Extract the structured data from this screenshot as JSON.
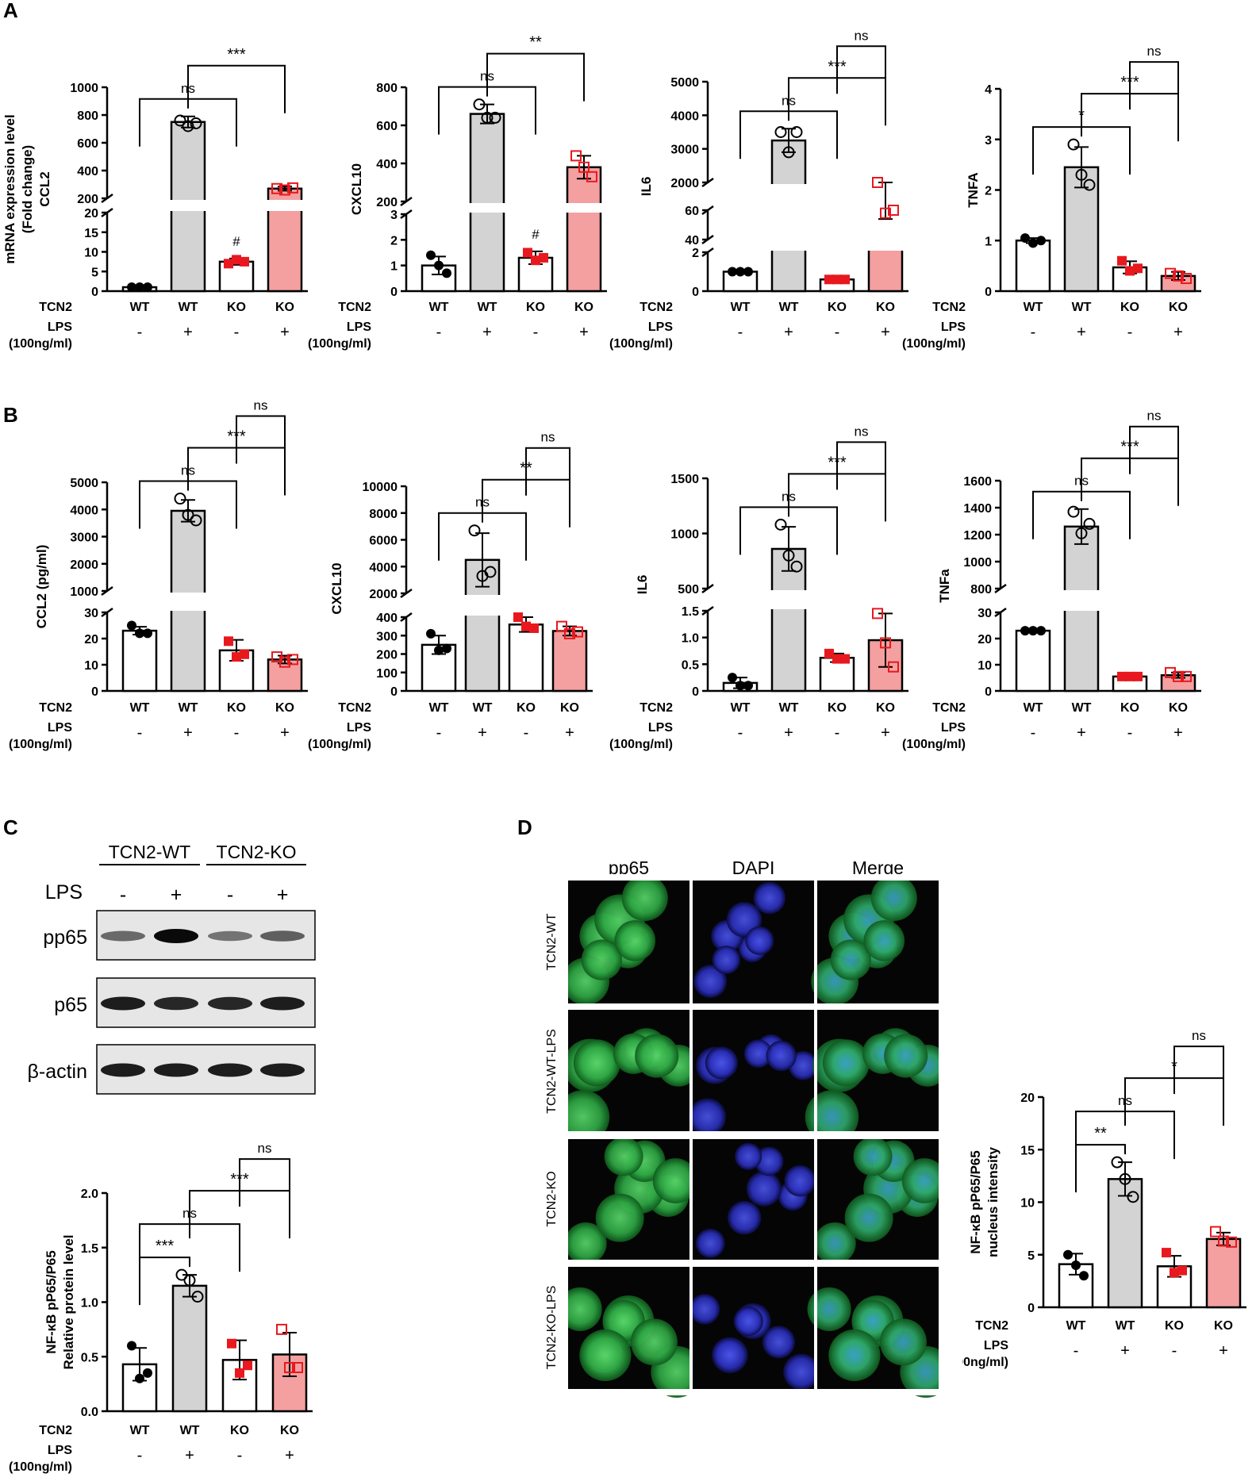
{
  "panels": {
    "A": "A",
    "B": "B",
    "C": "C",
    "D": "D"
  },
  "colors": {
    "wt_fill": "#ffffff",
    "wt_lps_fill": "#d3d3d3",
    "ko_fill": "#ffffff",
    "ko_lps_fill": "#f4a0a0",
    "wt_point": "#000000",
    "ko_point": "#e8181e",
    "axis": "#000000"
  },
  "condition_labels": {
    "row1": "TCN2",
    "row2": "LPS",
    "row3": "(100ng/ml)",
    "tcn2": [
      "WT",
      "WT",
      "KO",
      "KO"
    ],
    "lps": [
      "-",
      "+",
      "-",
      "+"
    ]
  },
  "chart_data": [
    {
      "id": "A1",
      "type": "bar",
      "ylabel_lines": [
        "mRNA expression level",
        "(Fold change)",
        "CCL2"
      ],
      "categories": [
        "WT -",
        "WT +",
        "KO -",
        "KO +"
      ],
      "values": [
        1,
        750,
        7.5,
        270
      ],
      "points": [
        [
          1,
          1,
          1
        ],
        [
          760,
          720,
          740
        ],
        [
          7,
          8,
          7.5
        ],
        [
          270,
          260,
          275
        ]
      ],
      "errors": [
        0.1,
        40,
        0.8,
        15
      ],
      "y_break": {
        "lower": [
          0,
          20
        ],
        "upper": [
          200,
          1000
        ]
      },
      "lower_ticks": [
        "0",
        "5",
        "10",
        "15",
        "20"
      ],
      "upper_ticks": [
        "200",
        "400",
        "600",
        "800",
        "1000"
      ],
      "annotations": [
        {
          "label": "ns",
          "from": 0,
          "to": 2
        },
        {
          "label": "***",
          "from": 1,
          "to": 3
        }
      ],
      "marker_labels": [
        {
          "label": "#",
          "bar": 2
        }
      ]
    },
    {
      "id": "A2",
      "type": "bar",
      "ylabel_lines": [
        "CXCL10"
      ],
      "categories": [
        "WT -",
        "WT +",
        "KO -",
        "KO +"
      ],
      "values": [
        1,
        660,
        1.3,
        380
      ],
      "points": [
        [
          1.4,
          1,
          0.7
        ],
        [
          710,
          640,
          640
        ],
        [
          1.5,
          1.2,
          1.3
        ],
        [
          440,
          380,
          330
        ]
      ],
      "errors": [
        0.35,
        50,
        0.25,
        60
      ],
      "y_break": {
        "lower": [
          0,
          3
        ],
        "upper": [
          200,
          800
        ]
      },
      "lower_ticks": [
        "0",
        "1",
        "2",
        "3"
      ],
      "upper_ticks": [
        "200",
        "400",
        "600",
        "800"
      ],
      "annotations": [
        {
          "label": "ns",
          "from": 0,
          "to": 2
        },
        {
          "label": "**",
          "from": 1,
          "to": 3
        }
      ],
      "marker_labels": [
        {
          "label": "#",
          "bar": 2
        }
      ]
    },
    {
      "id": "A3",
      "type": "bar",
      "ylabel_lines": [
        "IL6"
      ],
      "categories": [
        "WT -",
        "WT +",
        "KO -",
        "KO +"
      ],
      "values": [
        1,
        3250,
        0.6,
        60
      ],
      "points": [
        [
          1,
          1,
          1
        ],
        [
          3500,
          2900,
          3500
        ],
        [
          0.6,
          0.6,
          0.6
        ],
        [
          65,
          58,
          60
        ]
      ],
      "errors": [
        0.1,
        350,
        0.05,
        6
      ],
      "y_break": {
        "lower": [
          0,
          2
        ],
        "middle": [
          40,
          60
        ],
        "upper": [
          2000,
          5000
        ]
      },
      "lower_ticks": [
        "0",
        "2"
      ],
      "middle_ticks": [
        "40",
        "60"
      ],
      "upper_ticks": [
        "2000",
        "3000",
        "4000",
        "5000"
      ],
      "annotations": [
        {
          "label": "ns",
          "from": 0,
          "to": 2
        },
        {
          "label": "***",
          "from": 1,
          "to": 3
        },
        {
          "label": "ns",
          "from": 2,
          "to": 3
        }
      ]
    },
    {
      "id": "A4",
      "type": "bar",
      "ylabel_lines": [
        "TNFA"
      ],
      "categories": [
        "WT -",
        "WT +",
        "KO -",
        "KO +"
      ],
      "values": [
        1,
        2.45,
        0.47,
        0.3
      ],
      "points": [
        [
          1.05,
          0.95,
          1.0
        ],
        [
          2.9,
          2.3,
          2.1
        ],
        [
          0.6,
          0.4,
          0.45
        ],
        [
          0.35,
          0.3,
          0.25
        ]
      ],
      "errors": [
        0.05,
        0.4,
        0.12,
        0.08
      ],
      "ylim": [
        0,
        4
      ],
      "ticks": [
        "0",
        "1",
        "2",
        "3",
        "4"
      ],
      "annotations": [
        {
          "label": "*",
          "from": 0,
          "to": 2
        },
        {
          "label": "***",
          "from": 1,
          "to": 3
        },
        {
          "label": "ns",
          "from": 2,
          "to": 3
        }
      ]
    },
    {
      "id": "B1",
      "type": "bar",
      "ylabel_lines": [
        "CCL2 (pg/ml)"
      ],
      "categories": [
        "WT -",
        "WT +",
        "KO -",
        "KO +"
      ],
      "values": [
        23,
        3950,
        15.5,
        12
      ],
      "points": [
        [
          25,
          22,
          22
        ],
        [
          4400,
          3800,
          3600
        ],
        [
          19,
          13,
          14
        ],
        [
          13,
          11,
          12
        ]
      ],
      "errors": [
        1.5,
        400,
        4,
        1.5
      ],
      "y_break": {
        "lower": [
          0,
          30
        ],
        "upper": [
          1000,
          5000
        ]
      },
      "lower_ticks": [
        "0",
        "10",
        "20",
        "30"
      ],
      "upper_ticks": [
        "1000",
        "2000",
        "3000",
        "4000",
        "5000"
      ],
      "annotations": [
        {
          "label": "ns",
          "from": 0,
          "to": 2
        },
        {
          "label": "***",
          "from": 1,
          "to": 3
        },
        {
          "label": "ns",
          "from": 2,
          "to": 3
        }
      ]
    },
    {
      "id": "B2",
      "type": "bar",
      "ylabel_lines": [
        "CXCL10"
      ],
      "categories": [
        "WT -",
        "WT +",
        "KO -",
        "KO +"
      ],
      "values": [
        250,
        4500,
        360,
        325
      ],
      "points": [
        [
          310,
          220,
          230
        ],
        [
          6700,
          3300,
          3600
        ],
        [
          400,
          350,
          340
        ],
        [
          350,
          310,
          320
        ]
      ],
      "errors": [
        50,
        2000,
        40,
        25
      ],
      "y_break": {
        "lower": [
          0,
          400
        ],
        "upper": [
          2000,
          10000
        ]
      },
      "lower_ticks": [
        "0",
        "100",
        "200",
        "300",
        "400"
      ],
      "upper_ticks": [
        "2000",
        "4000",
        "6000",
        "8000",
        "10000"
      ],
      "annotations": [
        {
          "label": "ns",
          "from": 0,
          "to": 2
        },
        {
          "label": "**",
          "from": 1,
          "to": 3
        },
        {
          "label": "ns",
          "from": 2,
          "to": 3
        }
      ]
    },
    {
      "id": "B3",
      "type": "bar",
      "ylabel_lines": [
        "IL6"
      ],
      "categories": [
        "WT -",
        "WT +",
        "KO -",
        "KO +"
      ],
      "values": [
        0.15,
        860,
        0.62,
        0.95
      ],
      "points": [
        [
          0.25,
          0.1,
          0.1
        ],
        [
          1080,
          800,
          700
        ],
        [
          0.7,
          0.6,
          0.6
        ],
        [
          1.45,
          0.9,
          0.45
        ]
      ],
      "errors": [
        0.1,
        200,
        0.08,
        0.5
      ],
      "y_break": {
        "lower": [
          0,
          1.5
        ],
        "upper": [
          500,
          1500
        ]
      },
      "lower_ticks": [
        "0",
        "0.5",
        "1.0",
        "1.5"
      ],
      "upper_ticks": [
        "500",
        "1000",
        "1500"
      ],
      "annotations": [
        {
          "label": "ns",
          "from": 0,
          "to": 2
        },
        {
          "label": "***",
          "from": 1,
          "to": 3
        },
        {
          "label": "ns",
          "from": 2,
          "to": 3
        }
      ]
    },
    {
      "id": "B4",
      "type": "bar",
      "ylabel_lines": [
        "TNFa"
      ],
      "categories": [
        "WT -",
        "WT +",
        "KO -",
        "KO +"
      ],
      "values": [
        23,
        1260,
        5.5,
        6
      ],
      "points": [
        [
          23,
          23,
          23
        ],
        [
          1370,
          1210,
          1280
        ],
        [
          5.5,
          5.5,
          5.5
        ],
        [
          7,
          5.5,
          5.5
        ]
      ],
      "errors": [
        0.3,
        130,
        0.3,
        1
      ],
      "y_break": {
        "lower": [
          0,
          30
        ],
        "upper": [
          800,
          1600
        ]
      },
      "lower_ticks": [
        "0",
        "10",
        "20",
        "30"
      ],
      "upper_ticks": [
        "800",
        "1000",
        "1200",
        "1400",
        "1600"
      ],
      "annotations": [
        {
          "label": "ns",
          "from": 0,
          "to": 2
        },
        {
          "label": "***",
          "from": 1,
          "to": 3
        },
        {
          "label": "ns",
          "from": 2,
          "to": 3
        }
      ]
    },
    {
      "id": "C",
      "type": "bar",
      "ylabel_lines": [
        "NF-κB pP65/P65",
        "Relative protein level"
      ],
      "categories": [
        "WT -",
        "WT +",
        "KO -",
        "KO +"
      ],
      "values": [
        0.43,
        1.15,
        0.47,
        0.52
      ],
      "points": [
        [
          0.6,
          0.3,
          0.35
        ],
        [
          1.25,
          1.2,
          1.05
        ],
        [
          0.62,
          0.35,
          0.42
        ],
        [
          0.75,
          0.4,
          0.4
        ]
      ],
      "errors": [
        0.15,
        0.1,
        0.18,
        0.2
      ],
      "ylim": [
        0,
        2.0
      ],
      "ticks": [
        "0.0",
        "0.5",
        "1.0",
        "1.5",
        "2.0"
      ],
      "annotations": [
        {
          "label": "***",
          "from": 0,
          "to": 1
        },
        {
          "label": "ns",
          "from": 0,
          "to": 2
        },
        {
          "label": "***",
          "from": 1,
          "to": 3
        },
        {
          "label": "ns",
          "from": 2,
          "to": 3
        }
      ]
    },
    {
      "id": "D",
      "type": "bar",
      "ylabel_lines": [
        "NF-κB pP65/P65",
        "nucleus intensity"
      ],
      "categories": [
        "WT -",
        "WT +",
        "KO -",
        "KO +"
      ],
      "values": [
        4.1,
        12.2,
        3.9,
        6.5
      ],
      "points": [
        [
          5,
          4,
          3
        ],
        [
          13.8,
          12.2,
          10.5
        ],
        [
          5.2,
          3.3,
          3.5
        ],
        [
          7.2,
          6.3,
          6.2
        ]
      ],
      "errors": [
        1,
        1.6,
        1,
        0.6
      ],
      "ylim": [
        0,
        20
      ],
      "ticks": [
        "0",
        "5",
        "10",
        "15",
        "20"
      ],
      "annotations": [
        {
          "label": "**",
          "from": 0,
          "to": 1
        },
        {
          "label": "ns",
          "from": 0,
          "to": 2
        },
        {
          "label": "*",
          "from": 1,
          "to": 3
        },
        {
          "label": "ns",
          "from": 2,
          "to": 3
        }
      ]
    }
  ],
  "western_blot": {
    "groups": [
      "TCN2-WT",
      "TCN2-KO"
    ],
    "lps_label": "LPS",
    "lps": [
      "-",
      "+",
      "-",
      "+"
    ],
    "rows": [
      {
        "label": "pp65",
        "intensity": [
          0.5,
          1.0,
          0.45,
          0.55
        ]
      },
      {
        "label": "p65",
        "intensity": [
          0.9,
          0.85,
          0.85,
          0.9
        ]
      },
      {
        "label": "β-actin",
        "intensity": [
          0.9,
          0.9,
          0.9,
          0.9
        ]
      }
    ]
  },
  "microscopy": {
    "columns": [
      "pp65",
      "DAPI",
      "Merge"
    ],
    "rows": [
      "TCN2-WT",
      "TCN2-WT-LPS",
      "TCN2-KO",
      "TCN2-KO-LPS"
    ]
  }
}
